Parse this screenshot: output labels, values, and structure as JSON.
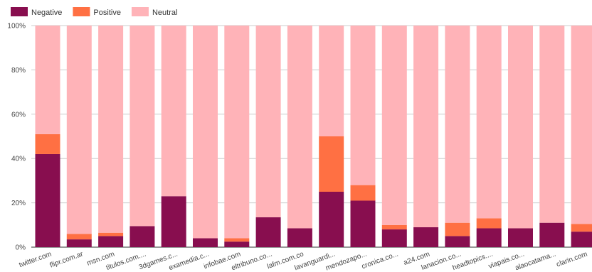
{
  "chart_data": {
    "type": "bar",
    "stacked": true,
    "normalized_percent": true,
    "title": "",
    "xlabel": "",
    "ylabel": "",
    "ylim": [
      0,
      100
    ],
    "yticks": [
      "0%",
      "20%",
      "40%",
      "60%",
      "80%",
      "100%"
    ],
    "grid": true,
    "legend_position": "top-left",
    "categories": [
      "twitter.com",
      "flipr.com.ar",
      "msn.com",
      "titulos.com....",
      "3dgames.c...",
      "examedia.c...",
      "infobae.com",
      "eltribuno.co...",
      "lafm.com.co",
      "lavanguardi...",
      "mendozapo...",
      "cronica.co...",
      "a24.com",
      "lanacion.co...",
      "headtopics....",
      "viapais.co...",
      "alaocatama...",
      "clarin.com"
    ],
    "series": [
      {
        "name": "Negative",
        "color": "#880e4f",
        "values": [
          42,
          3.5,
          5,
          9.5,
          23,
          4,
          2.5,
          13.5,
          8.5,
          25,
          21,
          8,
          9,
          5,
          8.5,
          8.5,
          11,
          7
        ]
      },
      {
        "name": "Positive",
        "color": "#ff7043",
        "values": [
          9,
          2.5,
          1.5,
          0,
          0,
          0,
          1.5,
          0,
          0,
          25,
          7,
          2,
          0,
          6,
          4.5,
          0,
          0,
          3.5
        ]
      },
      {
        "name": "Neutral",
        "color": "#ffb3b8",
        "values": [
          49,
          94,
          93.5,
          90.5,
          77,
          96,
          96,
          86.5,
          91.5,
          50,
          72,
          90,
          91,
          89,
          87,
          91.5,
          89,
          89.5
        ]
      }
    ]
  }
}
